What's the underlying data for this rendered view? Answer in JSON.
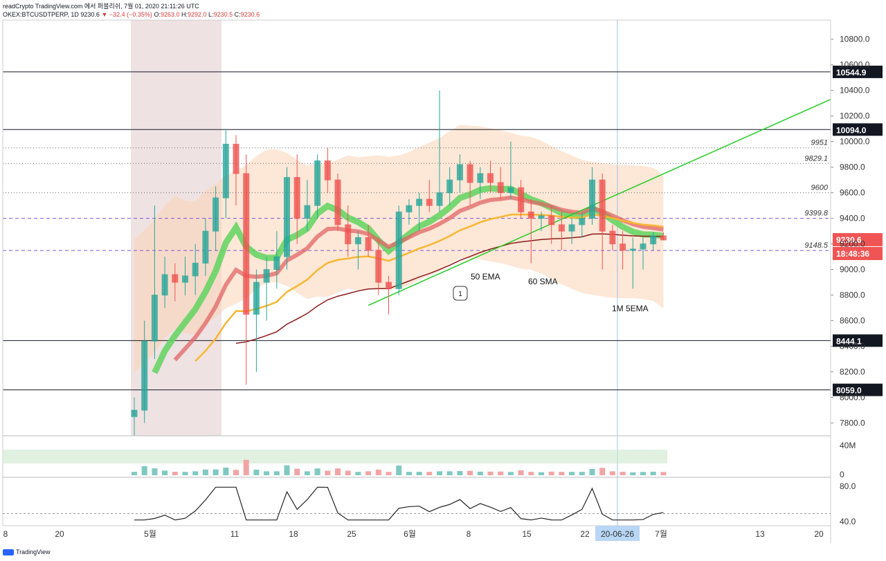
{
  "header": {
    "line1": "readCrypto TradingView.com 에서 퍼블리쉬, 7월 01, 2020 21:11:26 UTC",
    "symbol": "OKEX:BTCUSDTPERP, 1D",
    "last": "9230.6",
    "change": "−32.4 (−0.35%)",
    "ohlc": {
      "o": "9263.0",
      "h": "9292.0",
      "l": "9230.5",
      "c": "9230.6"
    }
  },
  "colors": {
    "up": "#26a69a",
    "down": "#ef5350",
    "ema_band": "#e06666",
    "rising_band": "#5fd35f",
    "sma": "#f7b731",
    "long_ma": "#8b1a1a",
    "trend": "#22cc22",
    "envelope": "#fbd3b5"
  },
  "chart_data": {
    "type": "line",
    "title": "",
    "y_axis": {
      "ticks": [
        "7800.0",
        "8000.0",
        "8200.0",
        "8400.0",
        "8600.0",
        "8800.0",
        "9000.0",
        "9200.0",
        "9400.0",
        "9600.0",
        "9800.0",
        "10000.0",
        "10200.0",
        "10400.0",
        "10600.0",
        "10800.0"
      ],
      "ylim": [
        7700,
        10950
      ]
    },
    "x_axis": {
      "ticks": [
        "8",
        "20",
        "5월",
        "11",
        "18",
        "25",
        "6월",
        "8",
        "15",
        "22",
        "20-06-26",
        "7월",
        "13",
        "20"
      ],
      "highlighted_tick": "20-06-26"
    },
    "price_levels": [
      {
        "value": 10544.9,
        "label": "10544.9",
        "style": "solid"
      },
      {
        "value": 10094.0,
        "label": "10094.0",
        "style": "solid"
      },
      {
        "value": 9951,
        "label": "9951",
        "style": "dotted"
      },
      {
        "value": 9829.1,
        "label": "9829.1",
        "style": "dotted"
      },
      {
        "value": 9600,
        "label": "9600",
        "style": "dotted"
      },
      {
        "value": 9399.8,
        "label": "9399.8",
        "style": "dashed"
      },
      {
        "value": 9148.5,
        "label": "9148.5",
        "style": "dashed"
      },
      {
        "value": 8444.1,
        "label": "8444.1",
        "style": "solid"
      },
      {
        "value": 8059.0,
        "label": "8059.0",
        "style": "solid"
      }
    ],
    "current_price": {
      "value": 9230.6,
      "label": "9230.6",
      "countdown": "18:48:36"
    },
    "annotations": [
      "50 EMA",
      "60 SMA",
      "1M 5EMA",
      "1"
    ],
    "candles": [
      {
        "o": 7850,
        "h": 8000,
        "l": 7700,
        "c": 7900
      },
      {
        "o": 7900,
        "h": 8600,
        "l": 7800,
        "c": 8440
      },
      {
        "o": 8440,
        "h": 9500,
        "l": 8300,
        "c": 8800
      },
      {
        "o": 8800,
        "h": 9100,
        "l": 8700,
        "c": 8960
      },
      {
        "o": 8960,
        "h": 9050,
        "l": 8750,
        "c": 8900
      },
      {
        "o": 8900,
        "h": 9100,
        "l": 8800,
        "c": 8950
      },
      {
        "o": 8950,
        "h": 9200,
        "l": 8800,
        "c": 9050
      },
      {
        "o": 9050,
        "h": 9400,
        "l": 8950,
        "c": 9300
      },
      {
        "o": 9300,
        "h": 9650,
        "l": 9150,
        "c": 9560
      },
      {
        "o": 9560,
        "h": 10100,
        "l": 9400,
        "c": 9980
      },
      {
        "o": 9980,
        "h": 10050,
        "l": 9500,
        "c": 9750
      },
      {
        "o": 9750,
        "h": 9900,
        "l": 8100,
        "c": 8650
      },
      {
        "o": 8650,
        "h": 9000,
        "l": 8200,
        "c": 8900
      },
      {
        "o": 8900,
        "h": 9100,
        "l": 8600,
        "c": 9000
      },
      {
        "o": 9000,
        "h": 9300,
        "l": 8850,
        "c": 9100
      },
      {
        "o": 9100,
        "h": 9800,
        "l": 9000,
        "c": 9720
      },
      {
        "o": 9720,
        "h": 9900,
        "l": 9200,
        "c": 9400
      },
      {
        "o": 9400,
        "h": 9700,
        "l": 9300,
        "c": 9500
      },
      {
        "o": 9500,
        "h": 9900,
        "l": 9400,
        "c": 9850
      },
      {
        "o": 9850,
        "h": 9950,
        "l": 9600,
        "c": 9700
      },
      {
        "o": 9700,
        "h": 9750,
        "l": 9300,
        "c": 9350
      },
      {
        "o": 9350,
        "h": 9500,
        "l": 9100,
        "c": 9200
      },
      {
        "o": 9200,
        "h": 9300,
        "l": 9000,
        "c": 9250
      },
      {
        "o": 9250,
        "h": 9350,
        "l": 9100,
        "c": 9150
      },
      {
        "o": 9150,
        "h": 9250,
        "l": 8800,
        "c": 8900
      },
      {
        "o": 8900,
        "h": 8950,
        "l": 8650,
        "c": 8850
      },
      {
        "o": 8850,
        "h": 9500,
        "l": 8800,
        "c": 9450
      },
      {
        "o": 9450,
        "h": 9550,
        "l": 9350,
        "c": 9500
      },
      {
        "o": 9500,
        "h": 9600,
        "l": 9300,
        "c": 9550
      },
      {
        "o": 9550,
        "h": 9700,
        "l": 9450,
        "c": 9500
      },
      {
        "o": 9500,
        "h": 10400,
        "l": 9450,
        "c": 9600
      },
      {
        "o": 9600,
        "h": 9800,
        "l": 9500,
        "c": 9700
      },
      {
        "o": 9700,
        "h": 9900,
        "l": 9600,
        "c": 9820
      },
      {
        "o": 9820,
        "h": 9850,
        "l": 9500,
        "c": 9680
      },
      {
        "o": 9680,
        "h": 9800,
        "l": 9550,
        "c": 9750
      },
      {
        "o": 9750,
        "h": 9850,
        "l": 9600,
        "c": 9680
      },
      {
        "o": 9680,
        "h": 9800,
        "l": 9550,
        "c": 9600
      },
      {
        "o": 9600,
        "h": 10000,
        "l": 9550,
        "c": 9640
      },
      {
        "o": 9640,
        "h": 9700,
        "l": 9400,
        "c": 9450
      },
      {
        "o": 9450,
        "h": 9550,
        "l": 9050,
        "c": 9400
      },
      {
        "o": 9400,
        "h": 9450,
        "l": 9300,
        "c": 9420
      },
      {
        "o": 9420,
        "h": 9500,
        "l": 9200,
        "c": 9350
      },
      {
        "o": 9350,
        "h": 9450,
        "l": 9150,
        "c": 9300
      },
      {
        "o": 9300,
        "h": 9400,
        "l": 9200,
        "c": 9350
      },
      {
        "o": 9350,
        "h": 9450,
        "l": 9250,
        "c": 9400
      },
      {
        "o": 9400,
        "h": 9800,
        "l": 9350,
        "c": 9700
      },
      {
        "o": 9700,
        "h": 9750,
        "l": 9000,
        "c": 9300
      },
      {
        "o": 9300,
        "h": 9350,
        "l": 9150,
        "c": 9200
      },
      {
        "o": 9200,
        "h": 9300,
        "l": 9000,
        "c": 9150
      },
      {
        "o": 9150,
        "h": 9250,
        "l": 8850,
        "c": 9160
      },
      {
        "o": 9160,
        "h": 9250,
        "l": 9000,
        "c": 9200
      },
      {
        "o": 9200,
        "h": 9292,
        "l": 9150,
        "c": 9263
      },
      {
        "o": 9263,
        "h": 9292,
        "l": 9230,
        "c": 9230.6
      }
    ],
    "volume_panel": {
      "ticks": [
        "40M",
        "0"
      ]
    },
    "oscillator_panel": {
      "ticks": [
        "80.0",
        "40.0"
      ],
      "reference_level": 50
    }
  },
  "footer": {
    "brand": "TradingView"
  }
}
